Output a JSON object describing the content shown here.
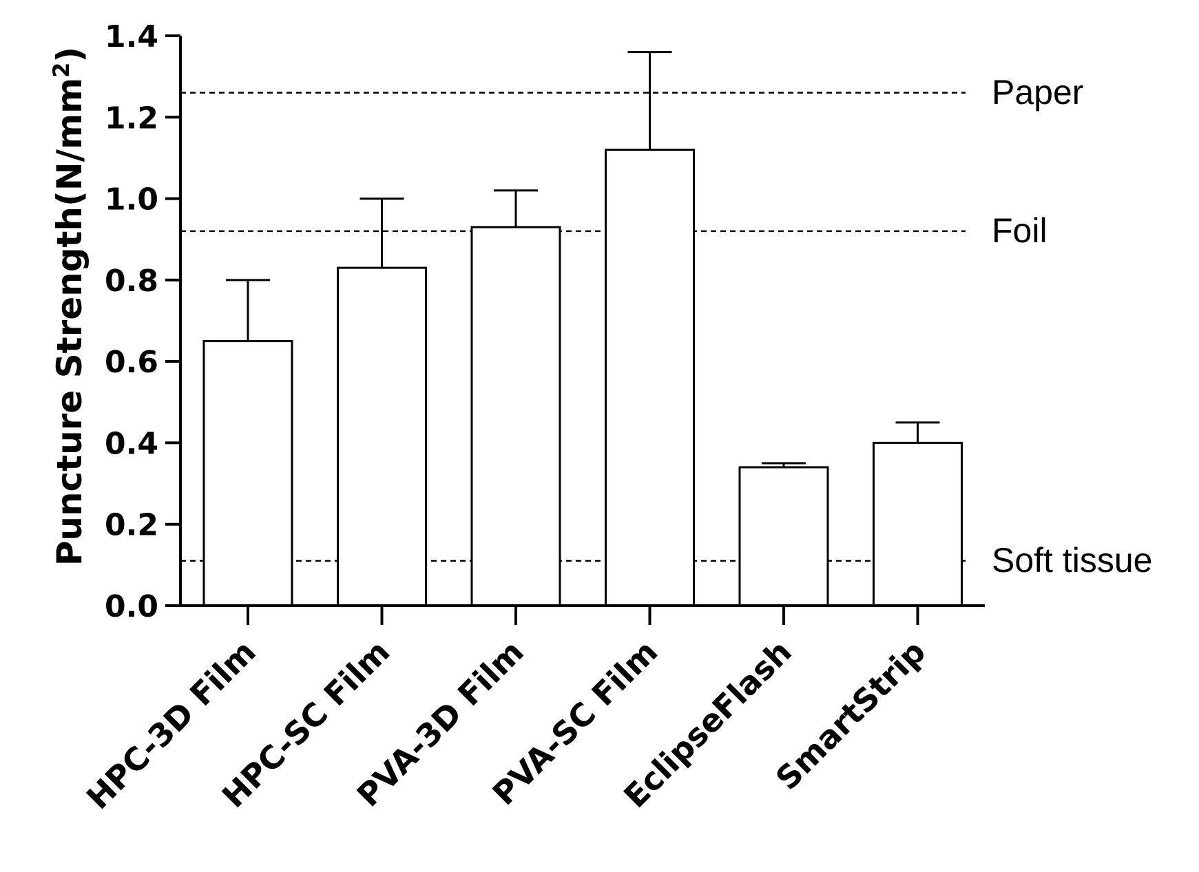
{
  "chart_data": {
    "type": "bar",
    "title": "",
    "xlabel": "",
    "ylabel": "Puncture Strength(N/mm",
    "ylabel_superscript": "2",
    "ylabel_suffix": ")",
    "ylim": [
      0,
      1.4
    ],
    "yticks": [
      0.0,
      0.2,
      0.4,
      0.6,
      0.8,
      1.0,
      1.2,
      1.4
    ],
    "ytick_labels": [
      "0.0",
      "0.2",
      "0.4",
      "0.6",
      "0.8",
      "1.0",
      "1.2",
      "1.4"
    ],
    "categories": [
      "HPC-3D Film",
      "HPC-SC Film",
      "PVA-3D Film",
      "PVA-SC Film",
      "EclipseFlash",
      "SmartStrip"
    ],
    "values": [
      0.65,
      0.83,
      0.93,
      1.12,
      0.34,
      0.4
    ],
    "error_upper": [
      0.8,
      1.0,
      1.02,
      1.36,
      0.35,
      0.45
    ],
    "reference_lines": [
      {
        "label": "Paper",
        "value": 1.26
      },
      {
        "label": "Foil",
        "value": 0.92
      },
      {
        "label": "Soft tissue",
        "value": 0.11
      }
    ],
    "bar_fill": "#ffffff",
    "stroke_color": "#000000",
    "grid": false
  }
}
